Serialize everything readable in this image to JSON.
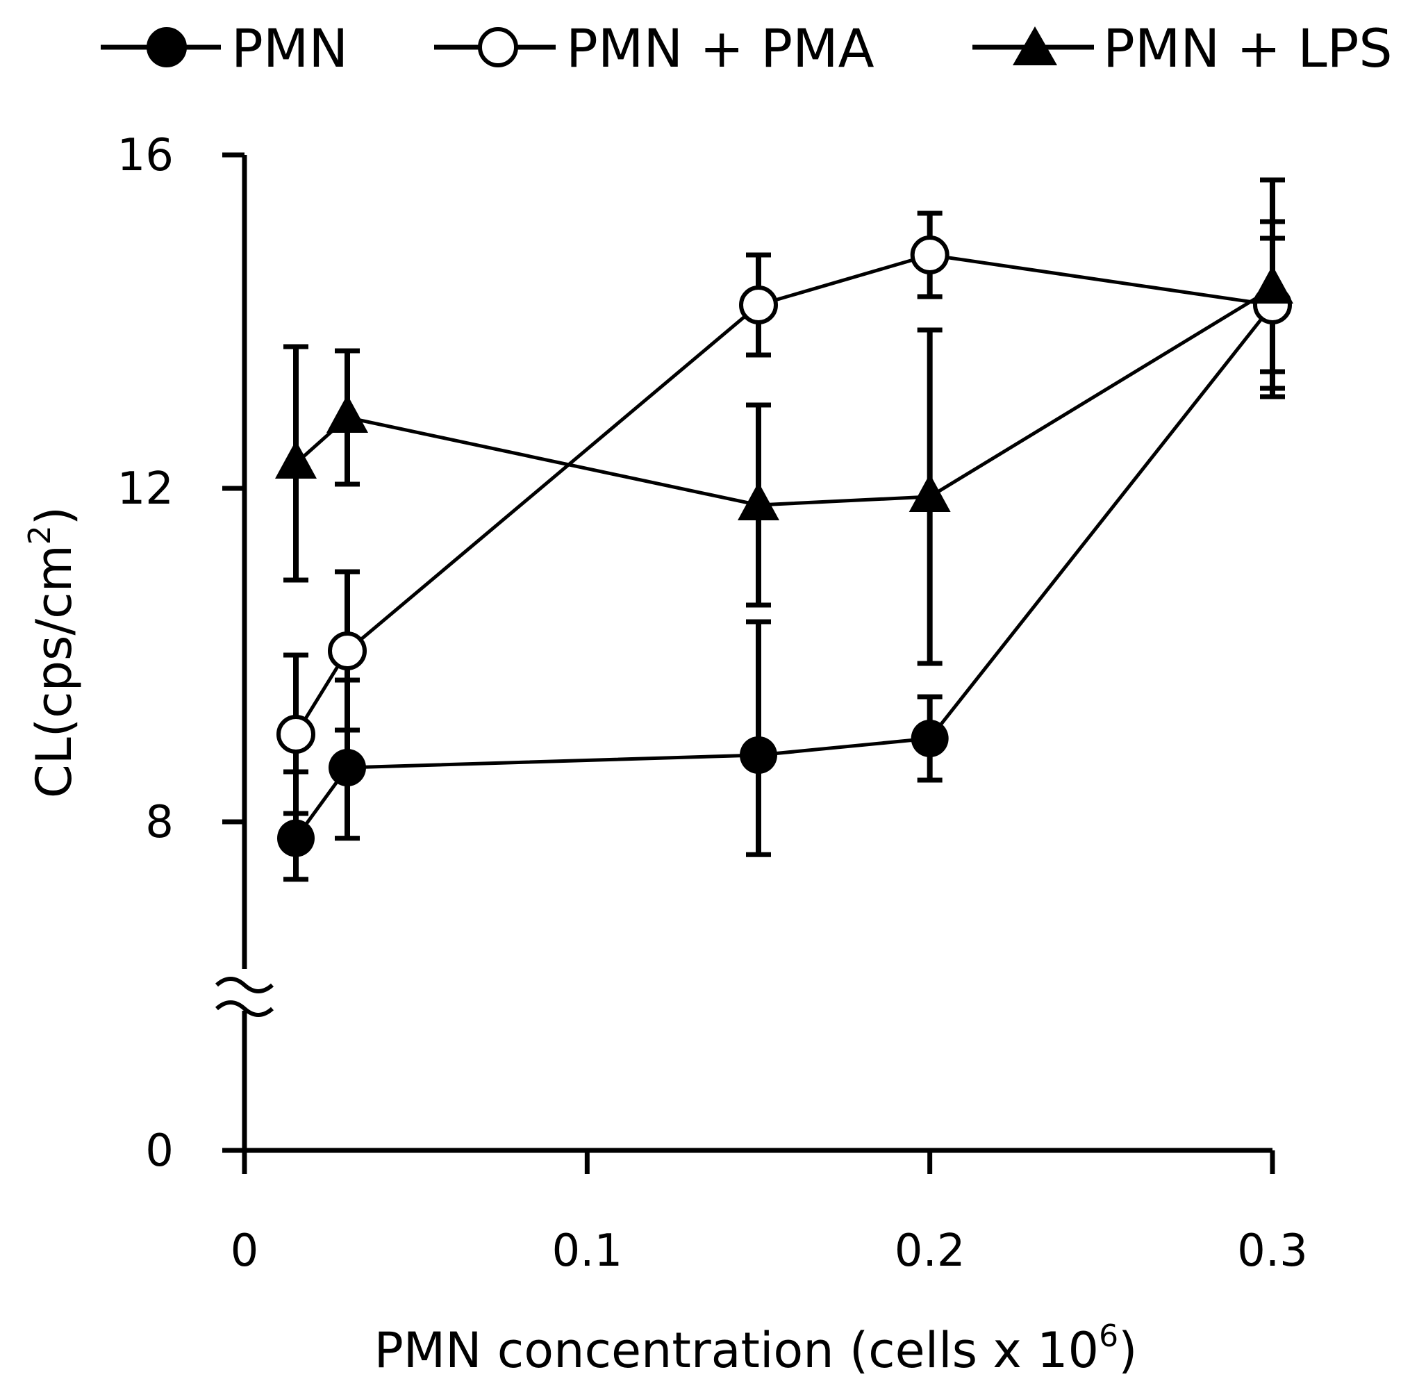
{
  "chart_data": {
    "type": "line",
    "xlabel": "PMN concentration (cells x 10",
    "xlabel_sup": "6",
    "xlabel_close": ")",
    "ylabel": "CL(cps/cm",
    "ylabel_sup": "2",
    "ylabel_close": ")",
    "xlim": [
      0,
      0.3
    ],
    "ylim": [
      0,
      16
    ],
    "x_ticks": [
      0,
      0.1,
      0.2,
      0.3
    ],
    "x_tick_labels": [
      "0",
      "0.1",
      "0.2",
      "0.3"
    ],
    "y_ticks": [
      0,
      8,
      12,
      16
    ],
    "y_tick_labels": [
      "0",
      "8",
      "12",
      "16"
    ],
    "y_axis_break": "between 0 and 8",
    "legend_position": "top",
    "series": [
      {
        "name": "PMN",
        "marker": "filled-circle",
        "x": [
          0.015,
          0.03,
          0.15,
          0.2,
          0.3
        ],
        "y": [
          7.6,
          8.65,
          8.8,
          9.0,
          14.2
        ],
        "err": [
          1.0,
          1.05,
          1.6,
          0.5,
          1.0
        ]
      },
      {
        "name": "PMN + PMA",
        "marker": "open-circle",
        "x": [
          0.015,
          0.03,
          0.15,
          0.2,
          0.3
        ],
        "y": [
          9.05,
          10.05,
          14.2,
          14.8,
          14.2
        ],
        "err": [
          0.95,
          0.95,
          0.6,
          0.5,
          0.8
        ]
      },
      {
        "name": "PMN + LPS",
        "marker": "filled-triangle",
        "x": [
          0.015,
          0.03,
          0.15,
          0.2,
          0.3
        ],
        "y": [
          12.3,
          12.85,
          11.8,
          11.9,
          14.4
        ],
        "err": [
          1.4,
          0.8,
          1.2,
          2.0,
          1.3
        ]
      }
    ]
  }
}
